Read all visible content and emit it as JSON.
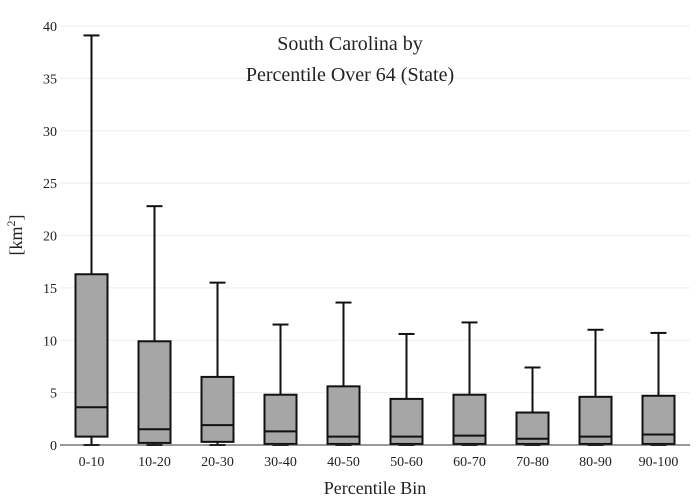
{
  "chart_data": {
    "type": "box",
    "title_lines": [
      "South Carolina  by",
      "Percentile Over 64 (State)"
    ],
    "xlabel": "Percentile Bin",
    "ylabel_base": "[km",
    "ylabel_sup": "2",
    "ylabel_end": "]",
    "ylim": [
      0,
      40
    ],
    "yticks": [
      0,
      5,
      10,
      15,
      20,
      25,
      30,
      35,
      40
    ],
    "grid": true,
    "colors": {
      "box_fill": "#a6a6a6",
      "stroke": "#111111",
      "grid": "#eeeeee"
    },
    "categories": [
      "0-10",
      "10-20",
      "20-30",
      "30-40",
      "40-50",
      "50-60",
      "60-70",
      "70-80",
      "80-90",
      "90-100"
    ],
    "boxes": [
      {
        "min": 0.0,
        "q1": 0.8,
        "median": 3.6,
        "q3": 16.3,
        "max": 39.1
      },
      {
        "min": 0.0,
        "q1": 0.2,
        "median": 1.5,
        "q3": 9.9,
        "max": 22.8
      },
      {
        "min": 0.0,
        "q1": 0.3,
        "median": 1.9,
        "q3": 6.5,
        "max": 15.5
      },
      {
        "min": 0.0,
        "q1": 0.1,
        "median": 1.3,
        "q3": 4.8,
        "max": 11.5
      },
      {
        "min": 0.0,
        "q1": 0.1,
        "median": 0.8,
        "q3": 5.6,
        "max": 13.6
      },
      {
        "min": 0.0,
        "q1": 0.1,
        "median": 0.8,
        "q3": 4.4,
        "max": 10.6
      },
      {
        "min": 0.0,
        "q1": 0.1,
        "median": 0.9,
        "q3": 4.8,
        "max": 11.7
      },
      {
        "min": 0.0,
        "q1": 0.1,
        "median": 0.6,
        "q3": 3.1,
        "max": 7.4
      },
      {
        "min": 0.0,
        "q1": 0.1,
        "median": 0.8,
        "q3": 4.6,
        "max": 11.0
      },
      {
        "min": 0.0,
        "q1": 0.1,
        "median": 1.0,
        "q3": 4.7,
        "max": 10.7
      }
    ]
  }
}
